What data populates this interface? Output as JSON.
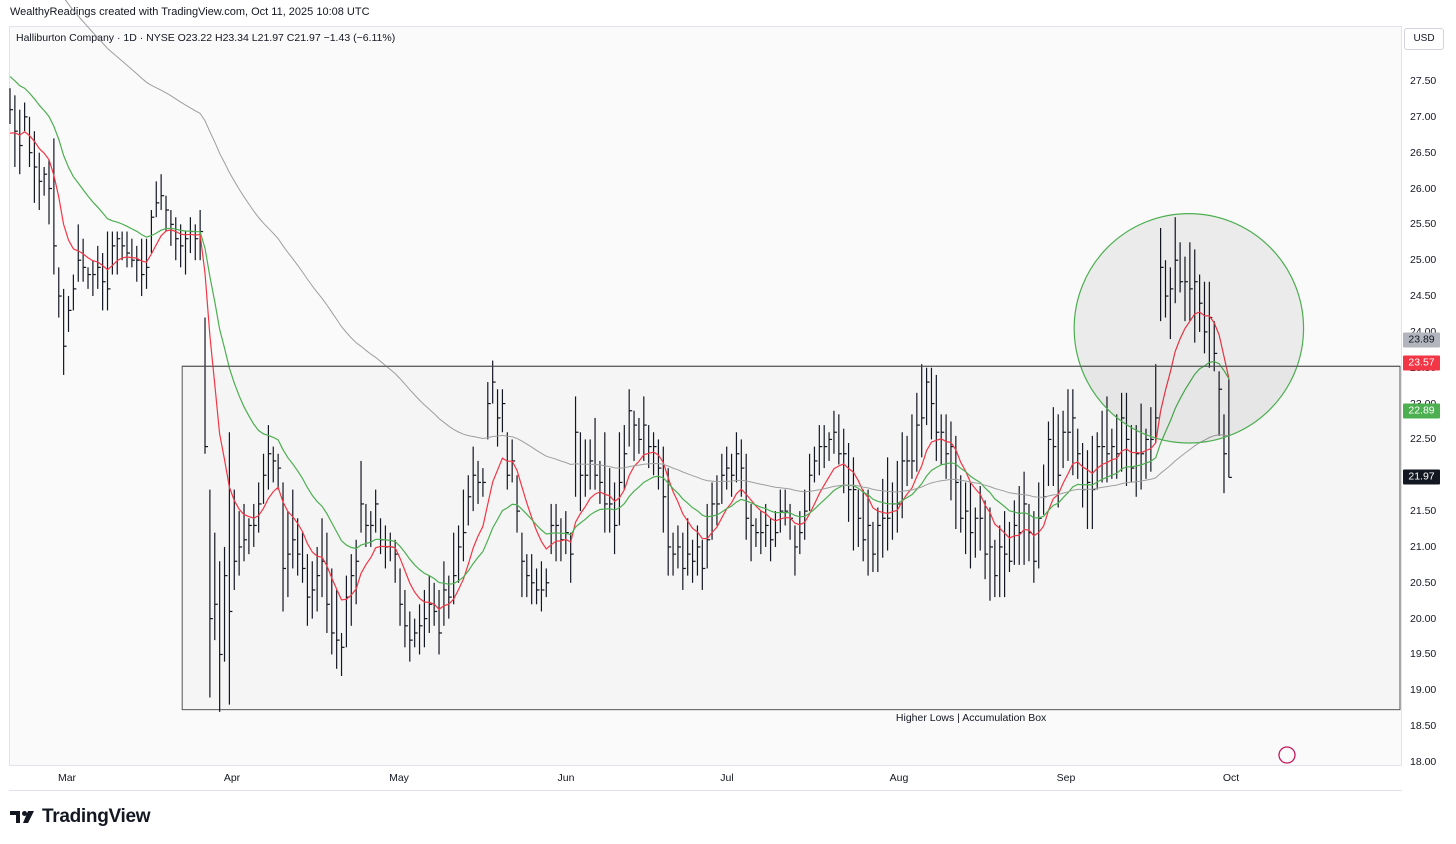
{
  "header": {
    "attribution": "WealthyReadings created with TradingView.com, Oct 11, 2025 10:08 UTC",
    "legend": "Halliburton Company · 1D · NYSE  O23.22  H23.34  L21.97  C21.97  −1.43 (−6.11%)"
  },
  "currency_button": "USD",
  "brand": {
    "name": "TradingView",
    "logo_icon": "tradingview-logo-icon"
  },
  "colors": {
    "bars": "#131722",
    "ma_fast": "#f23645",
    "ma_mid": "#4caf50",
    "ma_slow": "#9e9e9e",
    "circle_stroke": "#4caf50",
    "last_price_tag": "#131722"
  },
  "chart_data": {
    "type": "ohlc-bar",
    "symbol": "Halliburton Company",
    "interval": "1D",
    "exchange": "NYSE",
    "last_bar": {
      "open": 23.22,
      "high": 23.34,
      "low": 21.97,
      "close": 21.97,
      "change": -1.43,
      "change_pct": -6.11
    },
    "ylim": [
      18.0,
      27.5
    ],
    "y_ticks": [
      "27.50",
      "27.00",
      "26.50",
      "26.00",
      "25.50",
      "25.00",
      "24.50",
      "24.00",
      "23.50",
      "23.00",
      "22.50",
      "22.00",
      "21.50",
      "21.00",
      "20.50",
      "20.00",
      "19.50",
      "19.00",
      "18.50",
      "18.00"
    ],
    "x_ticks": [
      {
        "label": "Mar",
        "index": 10
      },
      {
        "label": "Apr",
        "index": 51
      },
      {
        "label": "May",
        "index": 92
      },
      {
        "label": "Jun",
        "index": 133
      },
      {
        "label": "Jul",
        "index": 174
      },
      {
        "label": "Aug",
        "index": 215
      },
      {
        "label": "Sep",
        "index": 256
      },
      {
        "label": "Oct",
        "index": 297
      }
    ],
    "price_labels": [
      {
        "value": 23.89,
        "color": "#9e9e9e",
        "series": "ma_slow"
      },
      {
        "value": 23.57,
        "color": "#f23645",
        "series": "ma_fast"
      },
      {
        "value": 22.89,
        "color": "#4caf50",
        "series": "ma_mid"
      },
      {
        "value": 21.97,
        "color": "#131722",
        "series": "last"
      }
    ],
    "annotations": {
      "box": {
        "label": "Higher Lows | Accumulation Box",
        "top_price": 23.52,
        "bottom_price": 18.73,
        "start_index": 42,
        "end_index": 345
      },
      "circle": {
        "center_index": 292,
        "center_price": 24.05,
        "radius_price": 1.6
      }
    },
    "bars_hlc": [
      [
        27.4,
        26.9,
        27.1
      ],
      [
        27.3,
        26.3,
        26.8
      ],
      [
        27.1,
        26.2,
        26.6
      ],
      [
        27.2,
        26.8,
        27.0
      ],
      [
        27.0,
        26.3,
        26.5
      ],
      [
        26.8,
        25.8,
        26.3
      ],
      [
        26.5,
        25.7,
        26.1
      ],
      [
        26.3,
        25.9,
        26.2
      ],
      [
        26.4,
        25.5,
        26.0
      ],
      [
        26.7,
        24.8,
        25.2
      ],
      [
        24.9,
        24.2,
        24.5
      ],
      [
        24.6,
        23.4,
        23.8
      ],
      [
        24.5,
        24.0,
        24.3
      ],
      [
        24.8,
        24.3,
        24.6
      ],
      [
        25.5,
        24.7,
        25.0
      ],
      [
        25.3,
        24.7,
        24.9
      ],
      [
        24.9,
        24.6,
        24.8
      ],
      [
        25.0,
        24.5,
        24.8
      ],
      [
        25.2,
        24.6,
        24.9
      ],
      [
        25.1,
        24.3,
        24.7
      ],
      [
        25.4,
        24.3,
        24.6
      ],
      [
        25.4,
        24.8,
        25.2
      ],
      [
        25.4,
        24.8,
        25.3
      ],
      [
        25.4,
        25.0,
        25.2
      ],
      [
        25.4,
        24.9,
        25.1
      ],
      [
        25.3,
        24.9,
        25.0
      ],
      [
        25.2,
        24.7,
        25.0
      ],
      [
        25.3,
        24.5,
        24.8
      ],
      [
        25.3,
        24.6,
        24.9
      ],
      [
        25.7,
        25.1,
        25.6
      ],
      [
        26.1,
        25.6,
        25.8
      ],
      [
        26.2,
        25.7,
        25.9
      ],
      [
        25.9,
        25.4,
        25.7
      ],
      [
        25.7,
        25.2,
        25.5
      ],
      [
        25.6,
        25.0,
        25.3
      ],
      [
        25.5,
        24.9,
        25.2
      ],
      [
        25.4,
        24.8,
        25.3
      ],
      [
        25.6,
        25.1,
        25.4
      ],
      [
        25.5,
        25.0,
        25.3
      ],
      [
        25.7,
        25.0,
        25.4
      ],
      [
        24.2,
        22.3,
        22.4
      ],
      [
        21.8,
        18.9,
        20.0
      ],
      [
        21.2,
        19.7,
        20.2
      ],
      [
        20.8,
        18.7,
        19.5
      ],
      [
        21.0,
        19.4,
        20.6
      ],
      [
        22.6,
        18.8,
        20.1
      ],
      [
        21.8,
        20.4,
        20.8
      ],
      [
        21.5,
        20.6,
        21.0
      ],
      [
        21.6,
        20.8,
        21.1
      ],
      [
        21.4,
        20.9,
        21.3
      ],
      [
        21.6,
        21.0,
        21.3
      ],
      [
        21.9,
        21.2,
        21.6
      ],
      [
        22.3,
        21.6,
        22.0
      ],
      [
        22.7,
        21.8,
        22.3
      ],
      [
        22.4,
        21.9,
        22.2
      ],
      [
        22.3,
        21.8,
        22.1
      ],
      [
        21.9,
        20.1,
        20.7
      ],
      [
        21.5,
        20.3,
        20.9
      ],
      [
        21.8,
        20.7,
        21.1
      ],
      [
        21.4,
        20.6,
        20.9
      ],
      [
        21.2,
        20.5,
        20.7
      ],
      [
        20.9,
        19.9,
        20.3
      ],
      [
        20.8,
        20.0,
        20.4
      ],
      [
        21.0,
        20.1,
        20.6
      ],
      [
        21.4,
        20.3,
        20.8
      ],
      [
        21.2,
        19.8,
        20.2
      ],
      [
        20.7,
        19.5,
        19.8
      ],
      [
        20.4,
        19.3,
        19.7
      ],
      [
        19.8,
        19.2,
        19.6
      ],
      [
        20.6,
        19.6,
        20.3
      ],
      [
        20.9,
        19.9,
        20.6
      ],
      [
        21.1,
        20.2,
        20.8
      ],
      [
        22.2,
        21.2,
        21.6
      ],
      [
        21.6,
        21.0,
        21.3
      ],
      [
        21.5,
        21.0,
        21.3
      ],
      [
        21.8,
        21.2,
        21.6
      ],
      [
        21.4,
        20.9,
        21.1
      ],
      [
        21.3,
        20.7,
        21.0
      ],
      [
        21.2,
        20.8,
        21.0
      ],
      [
        21.1,
        20.5,
        20.9
      ],
      [
        20.7,
        19.9,
        20.2
      ],
      [
        20.4,
        19.6,
        19.9
      ],
      [
        20.1,
        19.4,
        19.7
      ],
      [
        20.0,
        19.6,
        19.8
      ],
      [
        20.2,
        19.5,
        19.9
      ],
      [
        20.4,
        19.6,
        20.0
      ],
      [
        20.6,
        19.8,
        20.2
      ],
      [
        20.5,
        19.9,
        20.1
      ],
      [
        20.4,
        19.5,
        19.8
      ],
      [
        20.8,
        19.9,
        20.4
      ],
      [
        20.6,
        20.0,
        20.3
      ],
      [
        21.2,
        20.2,
        20.6
      ],
      [
        21.3,
        20.5,
        21.0
      ],
      [
        21.8,
        20.8,
        21.2
      ],
      [
        22.0,
        21.3,
        21.7
      ],
      [
        22.4,
        21.5,
        22.0
      ],
      [
        22.2,
        21.6,
        21.9
      ],
      [
        22.1,
        21.7,
        21.9
      ],
      [
        23.3,
        22.5,
        23.0
      ],
      [
        23.6,
        23.0,
        23.3
      ],
      [
        23.2,
        22.4,
        22.8
      ],
      [
        23.2,
        22.6,
        23.0
      ],
      [
        22.6,
        21.8,
        22.0
      ],
      [
        22.5,
        21.9,
        22.2
      ],
      [
        22.0,
        21.2,
        21.5
      ],
      [
        21.2,
        20.3,
        20.8
      ],
      [
        20.9,
        20.3,
        20.6
      ],
      [
        20.9,
        20.2,
        20.5
      ],
      [
        20.7,
        20.2,
        20.4
      ],
      [
        20.8,
        20.1,
        20.4
      ],
      [
        20.7,
        20.3,
        20.5
      ],
      [
        21.6,
        20.9,
        21.3
      ],
      [
        21.6,
        20.8,
        21.3
      ],
      [
        21.4,
        20.8,
        21.1
      ],
      [
        21.5,
        20.9,
        21.2
      ],
      [
        21.2,
        20.5,
        20.9
      ],
      [
        23.1,
        21.7,
        22.6
      ],
      [
        22.6,
        21.5,
        22.0
      ],
      [
        22.5,
        21.7,
        22.0
      ],
      [
        22.5,
        21.8,
        22.2
      ],
      [
        22.8,
        21.8,
        22.0
      ],
      [
        22.2,
        21.6,
        21.9
      ],
      [
        22.6,
        21.2,
        21.6
      ],
      [
        22.1,
        21.2,
        21.6
      ],
      [
        21.9,
        20.9,
        21.3
      ],
      [
        22.6,
        21.3,
        21.9
      ],
      [
        22.7,
        21.8,
        22.3
      ],
      [
        23.2,
        22.4,
        22.9
      ],
      [
        22.9,
        22.2,
        22.7
      ],
      [
        22.8,
        22.3,
        22.5
      ],
      [
        23.1,
        22.2,
        22.7
      ],
      [
        22.7,
        22.1,
        22.4
      ],
      [
        22.6,
        22.0,
        22.4
      ],
      [
        22.5,
        21.8,
        22.1
      ],
      [
        22.4,
        21.2,
        21.7
      ],
      [
        22.1,
        20.6,
        21.0
      ],
      [
        21.2,
        20.6,
        20.9
      ],
      [
        21.3,
        20.7,
        21.0
      ],
      [
        21.2,
        20.4,
        20.7
      ],
      [
        21.4,
        20.6,
        20.9
      ],
      [
        21.1,
        20.5,
        20.8
      ],
      [
        21.3,
        20.6,
        21.0
      ],
      [
        21.1,
        20.4,
        20.7
      ],
      [
        21.6,
        20.7,
        21.1
      ],
      [
        21.9,
        21.1,
        21.6
      ],
      [
        22.0,
        21.3,
        21.6
      ],
      [
        22.3,
        21.6,
        22.0
      ],
      [
        22.4,
        21.8,
        22.1
      ],
      [
        22.3,
        21.7,
        22.0
      ],
      [
        22.6,
        21.9,
        22.3
      ],
      [
        22.5,
        21.7,
        22.1
      ],
      [
        22.3,
        21.1,
        21.4
      ],
      [
        21.6,
        20.8,
        21.3
      ],
      [
        21.4,
        21.0,
        21.2
      ],
      [
        21.5,
        20.9,
        21.2
      ],
      [
        21.6,
        21.0,
        21.3
      ],
      [
        21.4,
        20.8,
        21.1
      ],
      [
        21.5,
        21.0,
        21.2
      ],
      [
        21.8,
        21.2,
        21.5
      ],
      [
        21.8,
        21.3,
        21.5
      ],
      [
        21.6,
        21.1,
        21.4
      ],
      [
        21.3,
        20.6,
        21.0
      ],
      [
        21.5,
        20.9,
        21.2
      ],
      [
        21.8,
        21.1,
        21.5
      ],
      [
        22.3,
        21.5,
        22.0
      ],
      [
        22.4,
        21.9,
        22.2
      ],
      [
        22.7,
        22.0,
        22.4
      ],
      [
        22.7,
        22.1,
        22.4
      ],
      [
        22.6,
        22.2,
        22.5
      ],
      [
        22.9,
        22.3,
        22.6
      ]
    ],
    "note_series": "Three moving averages: fast (red), mid (green), slow (gray)."
  }
}
